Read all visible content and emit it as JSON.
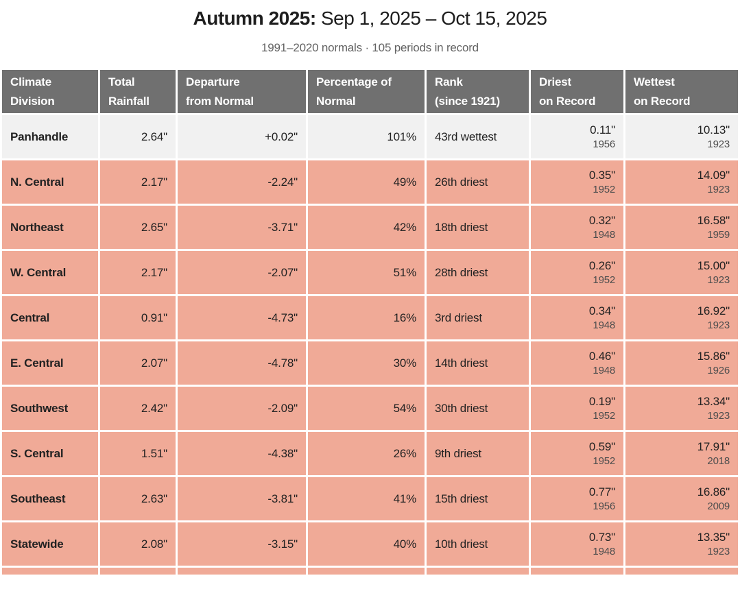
{
  "page": {
    "title_bold": "Autumn 2025:",
    "title_rest": " Sep 1, 2025 – Oct 15, 2025",
    "subtitle": "1991–2020 normals · 105 periods in record"
  },
  "colors": {
    "header_bg": "#707070",
    "header_text": "#ffffff",
    "row_normal_bg": "#f1f1f1",
    "row_dry_bg": "#f0aa97",
    "value_text": "#222222",
    "year_text": "#4e4e4e"
  },
  "chart_data": {
    "type": "table",
    "title": "Autumn 2025: Sep 1, 2025 – Oct 15, 2025",
    "subtitle": "1991–2020 normals · 105 periods in record",
    "columns": [
      {
        "id": "climate-division",
        "line1": "Climate",
        "line2": "Division"
      },
      {
        "id": "total-rainfall",
        "line1": "Total",
        "line2": "Rainfall"
      },
      {
        "id": "departure-from-normal",
        "line1": "Departure",
        "line2": "from Normal"
      },
      {
        "id": "percentage-of-normal",
        "line1": "Percentage of",
        "line2": "Normal"
      },
      {
        "id": "rank-since-1921",
        "line1": "Rank",
        "line2": "(since 1921)"
      },
      {
        "id": "driest-on-record",
        "line1": "Driest",
        "line2": "on Record"
      },
      {
        "id": "wettest-on-record",
        "line1": "Wettest",
        "line2": "on Record"
      }
    ],
    "rows": [
      {
        "division": "Panhandle",
        "total": "2.64\"",
        "departure": "+0.02\"",
        "percentage": "101%",
        "rank": "43rd wettest",
        "driest_value": "0.11\"",
        "driest_year": "1956",
        "wettest_value": "10.13\"",
        "wettest_year": "1923",
        "highlight": "normal"
      },
      {
        "division": "N. Central",
        "total": "2.17\"",
        "departure": "-2.24\"",
        "percentage": "49%",
        "rank": "26th driest",
        "driest_value": "0.35\"",
        "driest_year": "1952",
        "wettest_value": "14.09\"",
        "wettest_year": "1923",
        "highlight": "dry"
      },
      {
        "division": "Northeast",
        "total": "2.65\"",
        "departure": "-3.71\"",
        "percentage": "42%",
        "rank": "18th driest",
        "driest_value": "0.32\"",
        "driest_year": "1948",
        "wettest_value": "16.58\"",
        "wettest_year": "1959",
        "highlight": "dry"
      },
      {
        "division": "W. Central",
        "total": "2.17\"",
        "departure": "-2.07\"",
        "percentage": "51%",
        "rank": "28th driest",
        "driest_value": "0.26\"",
        "driest_year": "1952",
        "wettest_value": "15.00\"",
        "wettest_year": "1923",
        "highlight": "dry"
      },
      {
        "division": "Central",
        "total": "0.91\"",
        "departure": "-4.73\"",
        "percentage": "16%",
        "rank": "3rd driest",
        "driest_value": "0.34\"",
        "driest_year": "1948",
        "wettest_value": "16.92\"",
        "wettest_year": "1923",
        "highlight": "dry"
      },
      {
        "division": "E. Central",
        "total": "2.07\"",
        "departure": "-4.78\"",
        "percentage": "30%",
        "rank": "14th driest",
        "driest_value": "0.46\"",
        "driest_year": "1948",
        "wettest_value": "15.86\"",
        "wettest_year": "1926",
        "highlight": "dry"
      },
      {
        "division": "Southwest",
        "total": "2.42\"",
        "departure": "-2.09\"",
        "percentage": "54%",
        "rank": "30th driest",
        "driest_value": "0.19\"",
        "driest_year": "1952",
        "wettest_value": "13.34\"",
        "wettest_year": "1923",
        "highlight": "dry"
      },
      {
        "division": "S. Central",
        "total": "1.51\"",
        "departure": "-4.38\"",
        "percentage": "26%",
        "rank": "9th driest",
        "driest_value": "0.59\"",
        "driest_year": "1952",
        "wettest_value": "17.91\"",
        "wettest_year": "2018",
        "highlight": "dry"
      },
      {
        "division": "Southeast",
        "total": "2.63\"",
        "departure": "-3.81\"",
        "percentage": "41%",
        "rank": "15th driest",
        "driest_value": "0.77\"",
        "driest_year": "1956",
        "wettest_value": "16.86\"",
        "wettest_year": "2009",
        "highlight": "dry"
      },
      {
        "division": "Statewide",
        "total": "2.08\"",
        "departure": "-3.15\"",
        "percentage": "40%",
        "rank": "10th driest",
        "driest_value": "0.73\"",
        "driest_year": "1948",
        "wettest_value": "13.35\"",
        "wettest_year": "1923",
        "highlight": "dry"
      }
    ]
  }
}
